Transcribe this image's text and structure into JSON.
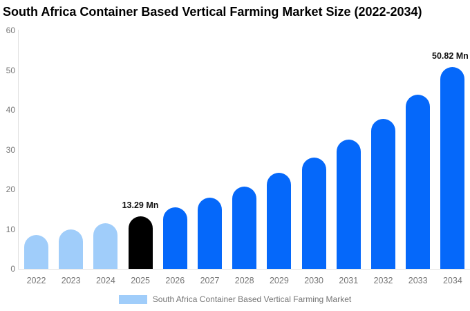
{
  "page": {
    "background": "#ffffff"
  },
  "chart_data": {
    "type": "bar",
    "title": "South Africa Container Based Vertical Farming Market Size (2022-2034)",
    "unit": "Mn",
    "categories": [
      "2022",
      "2023",
      "2024",
      "2025",
      "2026",
      "2027",
      "2028",
      "2029",
      "2030",
      "2031",
      "2032",
      "2033",
      "2034"
    ],
    "values": [
      8.5,
      9.86,
      11.45,
      13.29,
      15.43,
      17.9,
      20.78,
      24.12,
      27.99,
      32.49,
      37.71,
      43.77,
      50.82
    ],
    "bar_roles": [
      "past",
      "past",
      "past",
      "current",
      "forecast",
      "forecast",
      "forecast",
      "forecast",
      "forecast",
      "forecast",
      "forecast",
      "forecast",
      "forecast"
    ],
    "point_labels": {
      "2025": "13.29 Mn",
      "2034": "50.82 Mn"
    },
    "yticks": [
      0,
      10,
      20,
      30,
      40,
      50,
      60
    ],
    "ylim": [
      0,
      60
    ],
    "grid": false,
    "colors": {
      "past": "#A0CDFA",
      "current": "#000000",
      "forecast": "#0568FA",
      "axis_text": "#757575",
      "axis_line": "#E0E0E0",
      "label_text": "#111111",
      "title_text": "#000000"
    },
    "legend": {
      "label": "South Africa Container Based Vertical Farming Market",
      "swatch_color": "#A0CDFA",
      "position": "bottom-center"
    }
  }
}
